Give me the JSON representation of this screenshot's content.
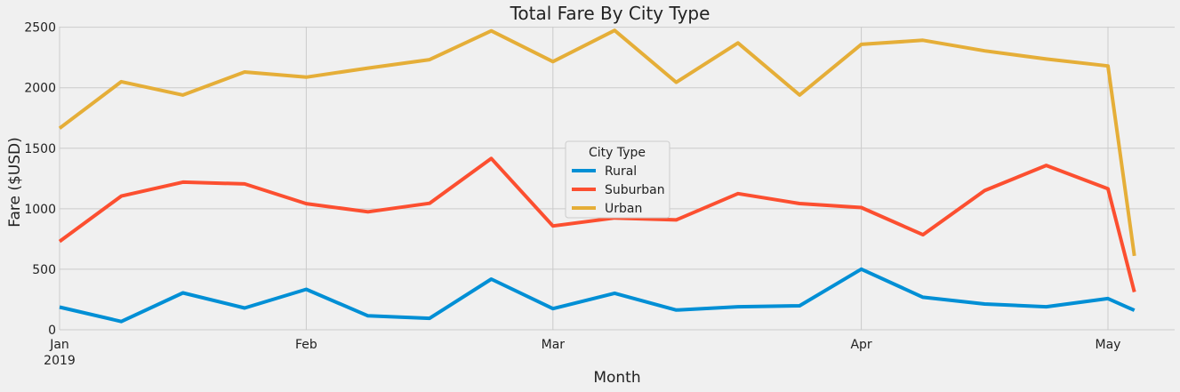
{
  "chart_data": {
    "type": "line",
    "title": "Total Fare By City Type",
    "xlabel": "Month",
    "ylabel": "Fare ($USD)",
    "ylim": [
      0,
      2600
    ],
    "yticks": [
      0,
      500,
      1000,
      1500,
      2000,
      2500
    ],
    "xlim": [
      "2019-01-06",
      "2019-05-05"
    ],
    "x": [
      "2019-01-06",
      "2019-01-13",
      "2019-01-20",
      "2019-01-27",
      "2019-02-03",
      "2019-02-10",
      "2019-02-17",
      "2019-02-24",
      "2019-03-03",
      "2019-03-10",
      "2019-03-17",
      "2019-03-24",
      "2019-03-31",
      "2019-04-07",
      "2019-04-14",
      "2019-04-21",
      "2019-04-28",
      "2019-05-05"
    ],
    "xticks": [
      {
        "date": "2019-01-06",
        "label": "Jan",
        "sublabel": "2019"
      },
      {
        "date": "2019-02-03",
        "label": "Feb",
        "sublabel": ""
      },
      {
        "date": "2019-03-03",
        "label": "Mar",
        "sublabel": ""
      },
      {
        "date": "2019-04-07",
        "label": "Apr",
        "sublabel": ""
      },
      {
        "date": "2019-05-05",
        "label": "May",
        "sublabel": ""
      }
    ],
    "grid": true,
    "legend": {
      "title": "City Type",
      "placement": "center"
    },
    "series": [
      {
        "name": "Rural",
        "color": "#008fd5",
        "values": [
          187,
          68,
          305,
          180,
          334,
          115,
          95,
          419,
          175,
          302,
          163,
          190,
          198,
          501,
          269,
          213,
          190,
          258
        ]
      },
      {
        "name": "Suburban",
        "color": "#fc4f30",
        "values": [
          730,
          1105,
          1220,
          1205,
          1042,
          975,
          1045,
          1415,
          858,
          924,
          908,
          1125,
          1043,
          1010,
          785,
          1150,
          1358,
          1165
        ]
      },
      {
        "name": "Urban",
        "color": "#e5ae38",
        "values": [
          1665,
          2050,
          1940,
          2130,
          2087,
          2162,
          2232,
          2470,
          2216,
          2474,
          2045,
          2370,
          1940,
          2358,
          2392,
          2305,
          2237,
          2180
        ]
      }
    ],
    "trailing_point": {
      "date": "2019-05-08",
      "values": [
        161,
        312,
        610
      ]
    }
  }
}
